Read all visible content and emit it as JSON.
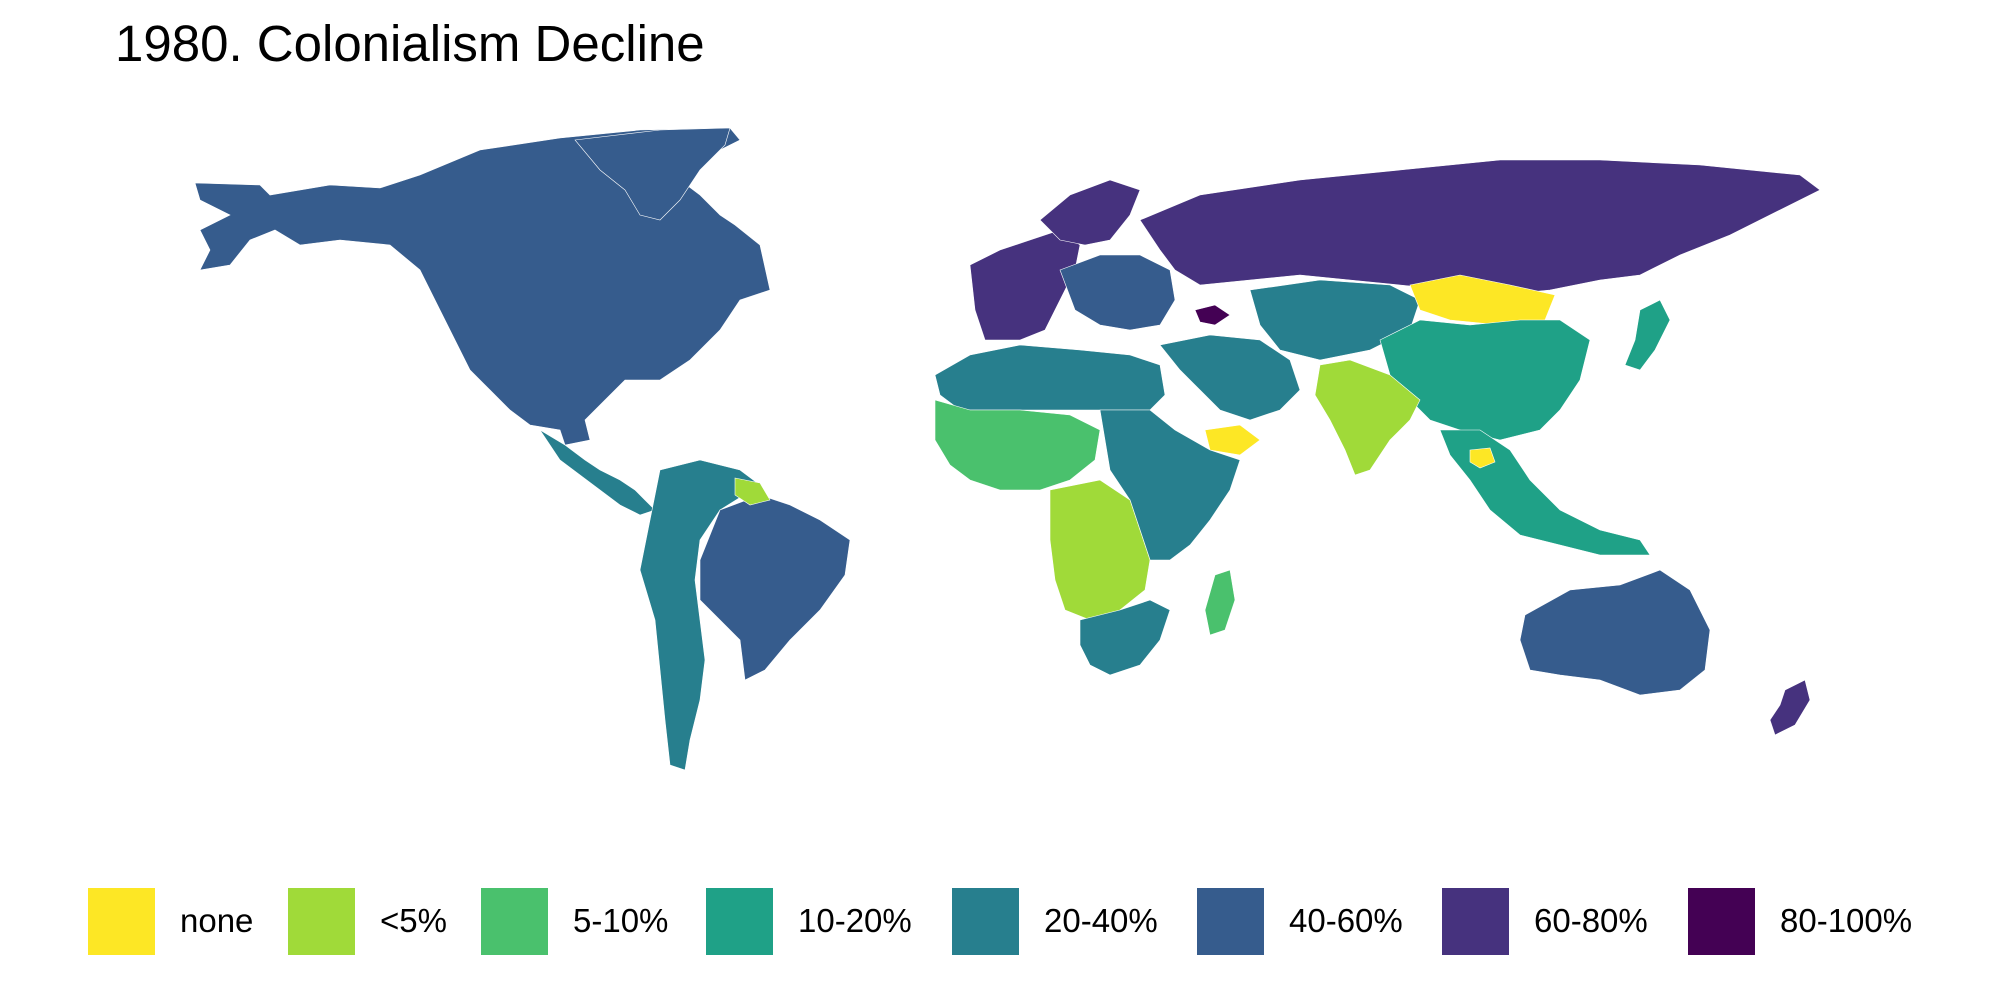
{
  "title": "1980. Colonialism Decline",
  "legend": {
    "items": [
      {
        "label": "none",
        "color": "#FDE725"
      },
      {
        "label": "<5%",
        "color": "#A0DA39"
      },
      {
        "label": "5-10%",
        "color": "#4AC16D"
      },
      {
        "label": "10-20%",
        "color": "#1FA187"
      },
      {
        "label": "20-40%",
        "color": "#277F8E"
      },
      {
        "label": "40-60%",
        "color": "#365C8D"
      },
      {
        "label": "60-80%",
        "color": "#46327E"
      },
      {
        "label": "80-100%",
        "color": "#440154"
      }
    ]
  },
  "regions": [
    {
      "name": "north-america",
      "category": "40-60%"
    },
    {
      "name": "central-america-caribbean",
      "category": "20-40%"
    },
    {
      "name": "south-america-west",
      "category": "20-40%"
    },
    {
      "name": "brazil",
      "category": "40-60%"
    },
    {
      "name": "guianas",
      "category": "<5%"
    },
    {
      "name": "western-europe",
      "category": "60-80%"
    },
    {
      "name": "central-europe",
      "category": "40-60%"
    },
    {
      "name": "russia",
      "category": "60-80%"
    },
    {
      "name": "caucasus",
      "category": "80-100%"
    },
    {
      "name": "central-asia",
      "category": "20-40%"
    },
    {
      "name": "mongolia",
      "category": "none"
    },
    {
      "name": "china",
      "category": "10-20%"
    },
    {
      "name": "middle-east",
      "category": "20-40%"
    },
    {
      "name": "yemen",
      "category": "none"
    },
    {
      "name": "india",
      "category": "<5%"
    },
    {
      "name": "southeast-asia",
      "category": "10-20%"
    },
    {
      "name": "cambodia",
      "category": "none"
    },
    {
      "name": "north-africa",
      "category": "20-40%"
    },
    {
      "name": "west-africa",
      "category": "5-10%"
    },
    {
      "name": "central-africa",
      "category": "<5%"
    },
    {
      "name": "east-africa",
      "category": "20-40%"
    },
    {
      "name": "southern-africa",
      "category": "20-40%"
    },
    {
      "name": "madagascar",
      "category": "5-10%"
    },
    {
      "name": "australia",
      "category": "40-60%"
    },
    {
      "name": "new-zealand",
      "category": "60-80%"
    },
    {
      "name": "japan",
      "category": "10-20%"
    }
  ]
}
